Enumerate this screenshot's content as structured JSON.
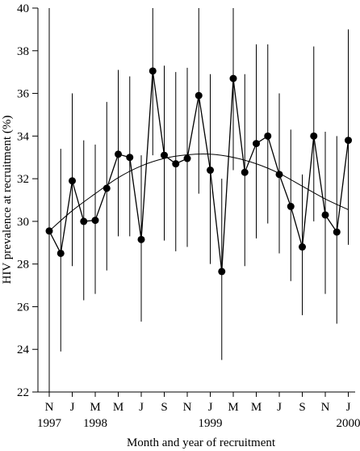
{
  "chart_data": {
    "type": "line",
    "title": "",
    "xlabel": "Month and year of recruitment",
    "ylabel": "HIV prevalence at recruitment (%)",
    "ylim": [
      22,
      40
    ],
    "yticks": [
      22,
      24,
      26,
      28,
      30,
      32,
      34,
      36,
      38,
      40
    ],
    "grid": false,
    "legend": "none",
    "x_month_labels": [
      "N",
      "J",
      "M",
      "M",
      "J",
      "S",
      "N",
      "J",
      "M",
      "M",
      "J",
      "S",
      "N",
      "J"
    ],
    "x_year_labels": [
      {
        "index": 0,
        "label": "1997"
      },
      {
        "index": 2,
        "label": "1998"
      },
      {
        "index": 7,
        "label": "1999"
      },
      {
        "index": 13,
        "label": "2000"
      }
    ],
    "series": [
      {
        "type": "points_with_error_bars",
        "points": [
          {
            "x": "Nov 1997",
            "y": 29.55,
            "lower": 22.0,
            "upper": 40.0
          },
          {
            "x": "Dec 1997",
            "y": 28.5,
            "lower": 23.9,
            "upper": 33.4
          },
          {
            "x": "Jan 1998",
            "y": 31.9,
            "lower": 27.9,
            "upper": 36.0
          },
          {
            "x": "Feb 1998",
            "y": 30.0,
            "lower": 26.3,
            "upper": 33.8
          },
          {
            "x": "Mar 1998",
            "y": 30.05,
            "lower": 26.6,
            "upper": 33.6
          },
          {
            "x": "Apr 1998",
            "y": 31.55,
            "lower": 27.7,
            "upper": 35.6
          },
          {
            "x": "May 1998",
            "y": 33.15,
            "lower": 29.3,
            "upper": 37.1
          },
          {
            "x": "Jun 1998",
            "y": 33.0,
            "lower": 29.3,
            "upper": 36.8
          },
          {
            "x": "Jul 1998",
            "y": 29.15,
            "lower": 25.3,
            "upper": 33.1
          },
          {
            "x": "Aug 1998",
            "y": 37.05,
            "lower": 33.1,
            "upper": 40.0
          },
          {
            "x": "Sep 1998",
            "y": 33.1,
            "lower": 29.1,
            "upper": 37.3
          },
          {
            "x": "Oct 1998",
            "y": 32.7,
            "lower": 28.6,
            "upper": 37.0
          },
          {
            "x": "Nov 1998",
            "y": 32.95,
            "lower": 28.8,
            "upper": 37.2
          },
          {
            "x": "Dec 1998",
            "y": 35.9,
            "lower": 31.3,
            "upper": 40.0
          },
          {
            "x": "Jan 1999",
            "y": 32.4,
            "lower": 28.0,
            "upper": 36.9
          },
          {
            "x": "Feb 1999",
            "y": 27.65,
            "lower": 23.5,
            "upper": 32.0
          },
          {
            "x": "Mar 1999",
            "y": 36.7,
            "lower": 32.4,
            "upper": 40.0
          },
          {
            "x": "Apr 1999",
            "y": 32.3,
            "lower": 27.9,
            "upper": 36.9
          },
          {
            "x": "May 1999",
            "y": 33.65,
            "lower": 29.2,
            "upper": 38.3
          },
          {
            "x": "Jun 1999",
            "y": 34.0,
            "lower": 29.9,
            "upper": 38.3
          },
          {
            "x": "Jul 1999",
            "y": 32.2,
            "lower": 28.5,
            "upper": 36.0
          },
          {
            "x": "Aug 1999",
            "y": 30.7,
            "lower": 27.2,
            "upper": 34.3
          },
          {
            "x": "Sep 1999",
            "y": 28.8,
            "lower": 25.6,
            "upper": 32.2
          },
          {
            "x": "Oct 1999",
            "y": 34.0,
            "lower": 30.0,
            "upper": 38.2
          },
          {
            "x": "Nov 1999",
            "y": 30.3,
            "lower": 26.6,
            "upper": 34.2
          },
          {
            "x": "Dec 1999",
            "y": 29.5,
            "lower": 25.2,
            "upper": 34.0
          },
          {
            "x": "Jan 2000",
            "y": 33.8,
            "lower": 28.9,
            "upper": 39.0
          }
        ]
      },
      {
        "type": "fitted_curve",
        "points": [
          {
            "x": "Nov 1997",
            "y": 29.55
          },
          {
            "x": "Jan 1998",
            "y": 30.5
          },
          {
            "x": "Mar 1998",
            "y": 31.3
          },
          {
            "x": "May 1998",
            "y": 32.05
          },
          {
            "x": "Jul 1998",
            "y": 32.6
          },
          {
            "x": "Sep 1998",
            "y": 32.95
          },
          {
            "x": "Nov 1998",
            "y": 33.12
          },
          {
            "x": "Jan 1999",
            "y": 33.15
          },
          {
            "x": "Mar 1999",
            "y": 33.0
          },
          {
            "x": "May 1999",
            "y": 32.7
          },
          {
            "x": "Jul 1999",
            "y": 32.25
          },
          {
            "x": "Sep 1999",
            "y": 31.65
          },
          {
            "x": "Nov 1999",
            "y": 31.05
          },
          {
            "x": "Jan 2000",
            "y": 30.55
          }
        ]
      }
    ]
  }
}
